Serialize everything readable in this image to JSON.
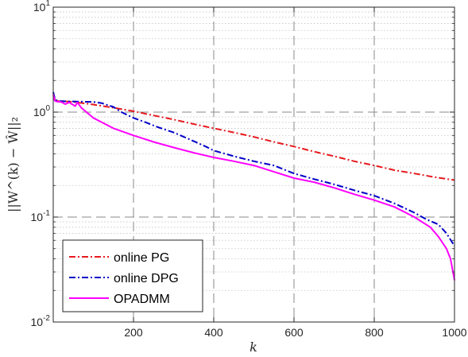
{
  "chart_data": {
    "type": "line",
    "xlabel": "k",
    "ylabel": "||W^(k) − Ŵ||₂",
    "xlim": [
      0,
      1000
    ],
    "ylim": [
      0.01,
      10
    ],
    "yscale": "log",
    "grid": true,
    "legend_position": "bottom-left",
    "x_ticks": [
      200,
      400,
      600,
      800,
      1000
    ],
    "x_tick_labels": [
      "200",
      "400",
      "600",
      "800",
      "1000"
    ],
    "y_ticks": [
      0.01,
      0.1,
      1,
      10
    ],
    "y_tick_labels": [
      {
        "base": "10",
        "exp": "-2"
      },
      {
        "base": "10",
        "exp": "-1"
      },
      {
        "base": "10",
        "exp": "0"
      },
      {
        "base": "10",
        "exp": "1"
      }
    ],
    "series": [
      {
        "name": "online PG",
        "color": "#e6191e",
        "dash": "dash-dot",
        "points": [
          [
            0,
            1.34
          ],
          [
            10,
            1.28
          ],
          [
            50,
            1.25
          ],
          [
            100,
            1.18
          ],
          [
            150,
            1.1
          ],
          [
            200,
            1.02
          ],
          [
            250,
            0.93
          ],
          [
            300,
            0.85
          ],
          [
            350,
            0.77
          ],
          [
            400,
            0.7
          ],
          [
            450,
            0.64
          ],
          [
            500,
            0.58
          ],
          [
            550,
            0.52
          ],
          [
            600,
            0.47
          ],
          [
            650,
            0.42
          ],
          [
            700,
            0.38
          ],
          [
            750,
            0.34
          ],
          [
            800,
            0.31
          ],
          [
            850,
            0.28
          ],
          [
            900,
            0.26
          ],
          [
            950,
            0.24
          ],
          [
            1000,
            0.225
          ]
        ]
      },
      {
        "name": "online DPG",
        "color": "#0000c8",
        "dash": "dash-dot",
        "points": [
          [
            0,
            1.55
          ],
          [
            5,
            1.3
          ],
          [
            20,
            1.27
          ],
          [
            60,
            1.26
          ],
          [
            100,
            1.25
          ],
          [
            120,
            1.22
          ],
          [
            150,
            1.12
          ],
          [
            170,
            1.0
          ],
          [
            200,
            0.88
          ],
          [
            230,
            0.8
          ],
          [
            260,
            0.72
          ],
          [
            300,
            0.64
          ],
          [
            340,
            0.55
          ],
          [
            380,
            0.47
          ],
          [
            400,
            0.43
          ],
          [
            450,
            0.38
          ],
          [
            500,
            0.34
          ],
          [
            550,
            0.31
          ],
          [
            600,
            0.26
          ],
          [
            650,
            0.23
          ],
          [
            700,
            0.205
          ],
          [
            750,
            0.18
          ],
          [
            800,
            0.16
          ],
          [
            850,
            0.135
          ],
          [
            900,
            0.11
          ],
          [
            930,
            0.095
          ],
          [
            960,
            0.085
          ],
          [
            980,
            0.07
          ],
          [
            1000,
            0.053
          ]
        ]
      },
      {
        "name": "OPADMM",
        "color": "#ff00ff",
        "dash": "solid",
        "points": [
          [
            0,
            1.48
          ],
          [
            4,
            1.28
          ],
          [
            10,
            1.26
          ],
          [
            20,
            1.25
          ],
          [
            30,
            1.19
          ],
          [
            40,
            1.24
          ],
          [
            45,
            1.2
          ],
          [
            55,
            1.14
          ],
          [
            60,
            1.24
          ],
          [
            70,
            1.1
          ],
          [
            100,
            0.88
          ],
          [
            150,
            0.7
          ],
          [
            200,
            0.6
          ],
          [
            250,
            0.52
          ],
          [
            300,
            0.46
          ],
          [
            350,
            0.41
          ],
          [
            400,
            0.37
          ],
          [
            450,
            0.34
          ],
          [
            500,
            0.31
          ],
          [
            550,
            0.27
          ],
          [
            600,
            0.235
          ],
          [
            650,
            0.215
          ],
          [
            700,
            0.19
          ],
          [
            750,
            0.165
          ],
          [
            800,
            0.145
          ],
          [
            850,
            0.125
          ],
          [
            900,
            0.1
          ],
          [
            940,
            0.08
          ],
          [
            960,
            0.065
          ],
          [
            980,
            0.05
          ],
          [
            990,
            0.04
          ],
          [
            1000,
            0.025
          ]
        ]
      }
    ]
  }
}
